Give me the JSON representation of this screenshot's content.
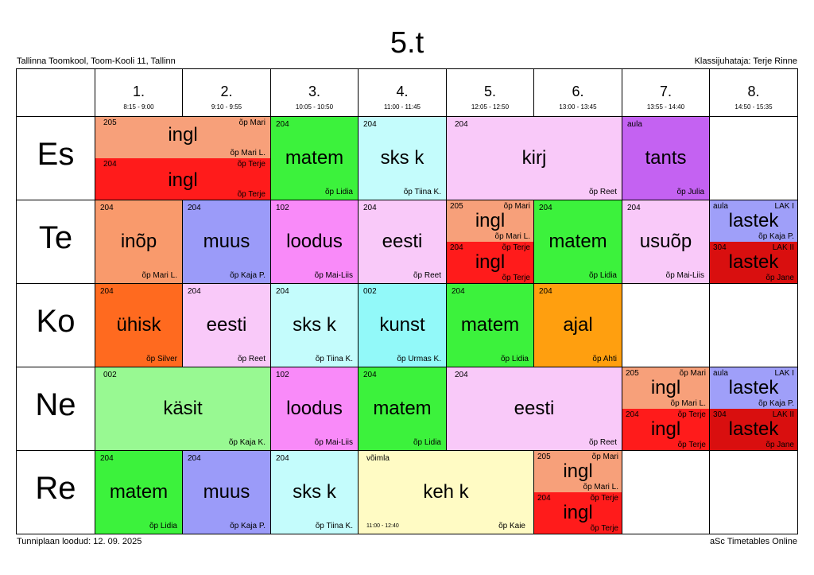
{
  "header": {
    "title": "5.t",
    "school": "Tallinna Toomkool, Toom-Kooli 11, Tallinn",
    "class_teacher": "Klassijuhataja: Terje Rinne"
  },
  "footer": {
    "created": "Tunniplaan loodud: 12. 09. 2025",
    "brand": "aSc Timetables Online"
  },
  "periods": [
    {
      "num": "1.",
      "time": "8:15 - 9:00"
    },
    {
      "num": "2.",
      "time": "9:10 - 9:55"
    },
    {
      "num": "3.",
      "time": "10:05 - 10:50"
    },
    {
      "num": "4.",
      "time": "11:00 - 11:45"
    },
    {
      "num": "5.",
      "time": "12:05 - 12:50"
    },
    {
      "num": "6.",
      "time": "13:00 - 13:45"
    },
    {
      "num": "7.",
      "time": "13:55 - 14:40"
    },
    {
      "num": "8.",
      "time": "14:50 - 15:35"
    }
  ],
  "days": [
    "Es",
    "Te",
    "Ko",
    "Ne",
    "Re"
  ],
  "colors": {
    "ingl_light": "#f7a07a",
    "ingl_dark": "#ff1b1b",
    "matem": "#3cf23c",
    "sks": "#c4fcfc",
    "kirj_eesti": "#f9c9f9",
    "tants": "#c462f2",
    "inop": "#f99a6c",
    "muus": "#9b9bf9",
    "loodus": "#f98af9",
    "usuop": "#f9c9f9",
    "lastek1": "#9f9ff9",
    "lastek2": "#d90f0f",
    "uhisk": "#ff6a1f",
    "kunst": "#92f9f9",
    "ajal": "#ff9f0f",
    "kasit": "#98f992",
    "kehk": "#fffbc4"
  },
  "lessons": {
    "es_ingl_a": {
      "room": "205",
      "subject": "ingl",
      "teacher": "õp Mari L.",
      "group": "õp Mari"
    },
    "es_ingl_b": {
      "room": "204",
      "subject": "ingl",
      "teacher": "õp Terje",
      "group": "õp Terje"
    },
    "es_matem": {
      "room": "204",
      "subject": "matem",
      "teacher": "õp Lidia"
    },
    "es_sks": {
      "room": "204",
      "subject": "sks k",
      "teacher": "õp Tiina K."
    },
    "es_kirj": {
      "room": "204",
      "subject": "kirj",
      "teacher": "õp Reet"
    },
    "es_tants": {
      "room": "aula",
      "subject": "tants",
      "teacher": "õp Julia"
    },
    "te_inop": {
      "room": "204",
      "subject": "inõp",
      "teacher": "õp Mari L."
    },
    "te_muus": {
      "room": "204",
      "subject": "muus",
      "teacher": "õp Kaja P."
    },
    "te_loodus": {
      "room": "102",
      "subject": "loodus",
      "teacher": "õp Mai-Liis"
    },
    "te_eesti": {
      "room": "204",
      "subject": "eesti",
      "teacher": "õp Reet"
    },
    "te_ingl_a": {
      "room": "205",
      "subject": "ingl",
      "teacher": "õp Mari L.",
      "group": "õp Mari"
    },
    "te_ingl_b": {
      "room": "204",
      "subject": "ingl",
      "teacher": "õp Terje",
      "group": "õp Terje"
    },
    "te_matem": {
      "room": "204",
      "subject": "matem",
      "teacher": "õp Lidia"
    },
    "te_usuop": {
      "room": "204",
      "subject": "usuõp",
      "teacher": "õp Mai-Liis"
    },
    "te_lastek_a": {
      "room": "aula",
      "subject": "lastek",
      "teacher": "õp Kaja P.",
      "group": "LAK I"
    },
    "te_lastek_b": {
      "room": "304",
      "subject": "lastek",
      "teacher": "õp Jane",
      "group": "LAK II"
    },
    "ko_uhisk": {
      "room": "204",
      "subject": "ühisk",
      "teacher": "õp Silver"
    },
    "ko_eesti": {
      "room": "204",
      "subject": "eesti",
      "teacher": "õp Reet"
    },
    "ko_sks": {
      "room": "204",
      "subject": "sks k",
      "teacher": "õp Tiina K."
    },
    "ko_kunst": {
      "room": "002",
      "subject": "kunst",
      "teacher": "õp Urmas K."
    },
    "ko_matem": {
      "room": "204",
      "subject": "matem",
      "teacher": "õp Lidia"
    },
    "ko_ajal": {
      "room": "204",
      "subject": "ajal",
      "teacher": "õp Ahti"
    },
    "ne_kasit": {
      "room": "002",
      "subject": "käsit",
      "teacher": "õp Kaja K."
    },
    "ne_loodus": {
      "room": "102",
      "subject": "loodus",
      "teacher": "õp Mai-Liis"
    },
    "ne_matem": {
      "room": "204",
      "subject": "matem",
      "teacher": "õp Lidia"
    },
    "ne_eesti": {
      "room": "204",
      "subject": "eesti",
      "teacher": "õp Reet"
    },
    "ne_ingl_a": {
      "room": "205",
      "subject": "ingl",
      "teacher": "õp Mari L.",
      "group": "õp Mari"
    },
    "ne_ingl_b": {
      "room": "204",
      "subject": "ingl",
      "teacher": "õp Terje",
      "group": "õp Terje"
    },
    "ne_lastek_a": {
      "room": "aula",
      "subject": "lastek",
      "teacher": "õp Kaja P.",
      "group": "LAK I"
    },
    "ne_lastek_b": {
      "room": "304",
      "subject": "lastek",
      "teacher": "õp Jane",
      "group": "LAK II"
    },
    "re_matem": {
      "room": "204",
      "subject": "matem",
      "teacher": "õp Lidia"
    },
    "re_muus": {
      "room": "204",
      "subject": "muus",
      "teacher": "õp Kaja P."
    },
    "re_sks": {
      "room": "204",
      "subject": "sks k",
      "teacher": "õp Tiina K."
    },
    "re_kehk": {
      "room": "võimla",
      "subject": "keh k",
      "teacher": "õp Kaie",
      "note": "11:00 - 12:40"
    },
    "re_ingl_a": {
      "room": "205",
      "subject": "ingl",
      "teacher": "õp Mari L.",
      "group": "õp Mari"
    },
    "re_ingl_b": {
      "room": "204",
      "subject": "ingl",
      "teacher": "õp Terje",
      "group": "õp Terje"
    }
  }
}
